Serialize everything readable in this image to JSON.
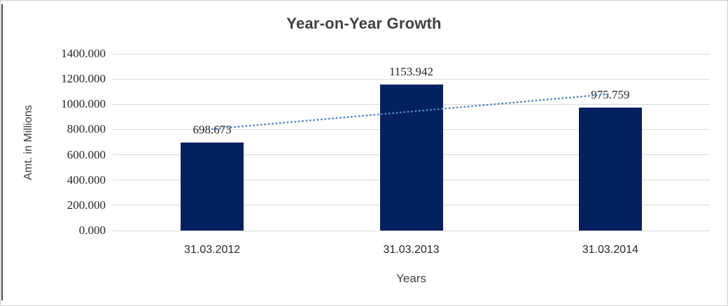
{
  "chart_data": {
    "type": "bar",
    "title": "Year-on-Year Growth",
    "xlabel": "Years",
    "ylabel": "Amt. in Millions",
    "categories": [
      "31.03.2012",
      "31.03.2013",
      "31.03.2014"
    ],
    "values": [
      698.673,
      1153.942,
      975.759
    ],
    "data_labels": [
      "698.673",
      "1153.942",
      "975.759"
    ],
    "ylim": [
      0,
      1400
    ],
    "ytick_step": 200,
    "ytick_labels": [
      "0.000",
      "200.000",
      "400.000",
      "600.000",
      "800.000",
      "1000.000",
      "1200.000",
      "1400.000"
    ],
    "grid": true,
    "legend_position": "none",
    "bar_color": "#03215F",
    "gridline_color": "#D9D9D9",
    "trendline": {
      "type": "linear",
      "style": "dotted",
      "color": "#4E86C8"
    }
  }
}
